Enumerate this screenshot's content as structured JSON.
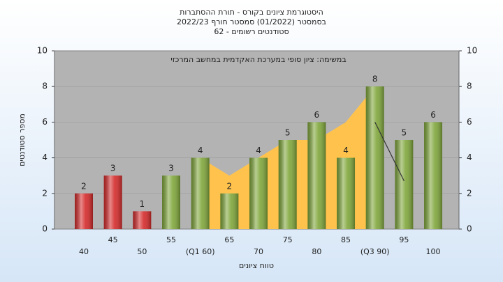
{
  "chart_data": {
    "type": "bar",
    "title": [
      "היסטוגרמת ציונים בקורס - תורת ההסתברות",
      "בסמסטר (01/2022) סמסטר חורף 2022/23",
      "סטודנטים רשומים - 62"
    ],
    "annotation": "במשימה: ציון סופי במערכת האקדמית במחשב המרכזי",
    "ylabel": "מספר סטודנטים",
    "xlabel": "טווח ציונים",
    "categories": [
      "40",
      "45",
      "50",
      "55",
      "(Q1 60)",
      "65",
      "70",
      "75",
      "80",
      "85",
      "(Q3 90)",
      "95",
      "100"
    ],
    "series": [
      {
        "type": "area",
        "color": "#ffc34d",
        "values": [
          null,
          null,
          null,
          null,
          4,
          3,
          4,
          5,
          5,
          6,
          8,
          null,
          null
        ]
      },
      {
        "type": "bar",
        "colors": [
          "#d42a2a",
          "#d42a2a",
          "#d42a2a",
          "#7fa63a",
          "#7fa63a",
          "#7fa63a",
          "#7fa63a",
          "#7fa63a",
          "#7fa63a",
          "#7fa63a",
          "#7fa63a",
          "#7fa63a",
          "#7fa63a"
        ],
        "values": [
          2,
          3,
          1,
          3,
          4,
          2,
          4,
          5,
          6,
          4,
          8,
          5,
          6
        ]
      },
      {
        "type": "line",
        "color": "#333333",
        "values": [
          null,
          null,
          null,
          null,
          null,
          null,
          null,
          null,
          null,
          null,
          6,
          2.7,
          null
        ]
      }
    ],
    "ylim": [
      0,
      10
    ],
    "yticks": [
      0,
      2,
      4,
      6,
      8,
      10
    ],
    "y2lim": [
      0,
      10
    ],
    "y2ticks": [
      0,
      2,
      4,
      6,
      8,
      10
    ]
  }
}
